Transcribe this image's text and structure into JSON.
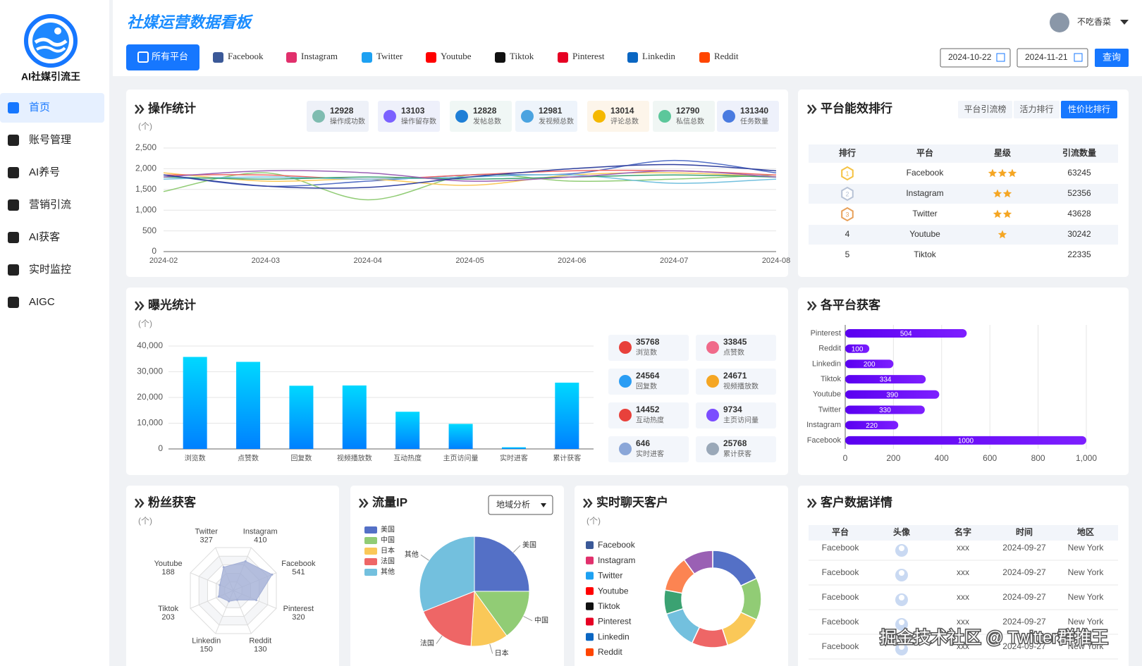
{
  "sidebar": {
    "brand": "AI社媒引流王",
    "menu": [
      "首页",
      "账号管理",
      "AI养号",
      "营销引流",
      "AI获客",
      "实时监控",
      "AIGC"
    ],
    "active": 0
  },
  "header": {
    "title": "社媒运营数据看板",
    "user": "不吃香菜",
    "platform_tabs": [
      "所有平台",
      "Facebook",
      "Instagram",
      "Twitter",
      "Youtube",
      "Tiktok",
      "Pinterest",
      "Linkedin",
      "Reddit"
    ],
    "date_start": "2024-10-22",
    "date_end": "2024-11-21",
    "query": "查询"
  },
  "ranking": {
    "title": "平台能效排行",
    "tabs": [
      "平台引流榜",
      "活力排行",
      "性价比排行"
    ],
    "active_tab": 2,
    "columns": [
      "排行",
      "平台",
      "星级",
      "引流数量"
    ],
    "rows": [
      {
        "rank": 1,
        "platform": "Facebook",
        "stars": 3,
        "count": 63245
      },
      {
        "rank": 2,
        "platform": "Instagram",
        "stars": 2,
        "count": 52356
      },
      {
        "rank": 3,
        "platform": "Twitter",
        "stars": 2,
        "count": 43628
      },
      {
        "rank": 4,
        "platform": "Youtube",
        "stars": 1,
        "count": 30242
      },
      {
        "rank": 5,
        "platform": "Tiktok",
        "stars": 0,
        "count": 22335
      }
    ]
  },
  "customers": {
    "title": "客户数据详情",
    "columns": [
      "平台",
      "头像",
      "名字",
      "时间",
      "地区"
    ],
    "rows": [
      [
        "Facebook",
        "xxx",
        "2024-09-27",
        "New York"
      ],
      [
        "Facebook",
        "xxx",
        "2024-09-27",
        "New York"
      ],
      [
        "Facebook",
        "xxx",
        "2024-09-27",
        "New York"
      ],
      [
        "Facebook",
        "xxx",
        "2024-09-27",
        "New York"
      ],
      [
        "Facebook",
        "xxx",
        "2024-09-27",
        "New York"
      ]
    ]
  },
  "watermark": "掘金技术社区 @ Twitter群推王",
  "chart_data": [
    {
      "type": "line",
      "title": "操作统计",
      "unit": "(个)",
      "stats": [
        {
          "value": 12928,
          "label": "操作成功数"
        },
        {
          "value": 13103,
          "label": "操作留存数"
        },
        {
          "value": 12828,
          "label": "发帖总数"
        },
        {
          "value": 12981,
          "label": "发视频总数"
        },
        {
          "value": 13014,
          "label": "评论总数"
        },
        {
          "value": 12790,
          "label": "私信总数"
        },
        {
          "value": 131340,
          "label": "任务数量"
        }
      ],
      "categories": [
        "2024-02",
        "2024-03",
        "2024-04",
        "2024-05",
        "2024-06",
        "2024-07",
        "2024-08"
      ],
      "series": [
        {
          "color": "#5470c6",
          "values": [
            1850,
            1580,
            1700,
            1850,
            1880,
            2200,
            1900
          ]
        },
        {
          "color": "#91cc75",
          "values": [
            1450,
            1900,
            1250,
            1850,
            1700,
            1750,
            1850
          ]
        },
        {
          "color": "#fac858",
          "values": [
            1900,
            1700,
            1750,
            1600,
            1850,
            1900,
            1800
          ]
        },
        {
          "color": "#ee6666",
          "values": [
            1850,
            1850,
            1750,
            1850,
            1950,
            1950,
            1850
          ]
        },
        {
          "color": "#73c0de",
          "values": [
            1750,
            1800,
            1750,
            1800,
            1850,
            1650,
            1750
          ]
        },
        {
          "color": "#3ba272",
          "values": [
            1800,
            1750,
            1800,
            1750,
            1800,
            1850,
            1800
          ]
        },
        {
          "color": "#9a60b4",
          "values": [
            1800,
            1950,
            1900,
            1700,
            1800,
            1950,
            1800
          ]
        },
        {
          "color": "#2f3f9e",
          "values": [
            1850,
            1580,
            1550,
            1800,
            2000,
            2100,
            1950
          ]
        }
      ],
      "ylim": [
        0,
        2500
      ],
      "yticks": [
        0,
        500,
        {
          "value": 1000,
          "label": "1,000"
        },
        {
          "value": 1500,
          "label": "1,500"
        },
        {
          "value": 2000,
          "label": "2,000"
        },
        {
          "value": 2500,
          "label": "2,500"
        }
      ],
      "grid": true
    },
    {
      "type": "bar",
      "title": "曝光统计",
      "unit": "(个)",
      "stats": [
        {
          "value": 35768,
          "label": "浏览数"
        },
        {
          "value": 33845,
          "label": "点赞数"
        },
        {
          "value": 24564,
          "label": "回复数"
        },
        {
          "value": 24671,
          "label": "视频播放数"
        },
        {
          "value": 14452,
          "label": "互动热度"
        },
        {
          "value": 9734,
          "label": "主页访问量"
        },
        {
          "value": 646,
          "label": "实时进客"
        },
        {
          "value": 25768,
          "label": "累计获客"
        }
      ],
      "categories": [
        "浏览数",
        "点赞数",
        "回复数",
        "视频播放数",
        "互动热度",
        "主页访问量",
        "实时进客",
        "累计获客"
      ],
      "values": [
        35768,
        33845,
        24564,
        24671,
        14452,
        9734,
        646,
        25768
      ],
      "colors": [
        "#00d8ff",
        "#0080ff"
      ],
      "ylim": [
        0,
        40000
      ],
      "yticks": [
        0,
        {
          "value": 10000,
          "label": "10,000"
        },
        {
          "value": 20000,
          "label": "20,000"
        },
        {
          "value": 30000,
          "label": "30,000"
        },
        {
          "value": 40000,
          "label": "40,000"
        }
      ],
      "grid": true
    },
    {
      "type": "bar",
      "orientation": "horizontal",
      "title": "各平台获客",
      "categories": [
        "Pinterest",
        "Reddit",
        "Linkedin",
        "Tiktok",
        "Youtube",
        "Twitter",
        "Instagram",
        "Facebook"
      ],
      "values": [
        504,
        100,
        200,
        334,
        390,
        330,
        220,
        1000
      ],
      "colors": [
        "#5a00f0",
        "#7d1fff"
      ],
      "xlim": [
        0,
        1000
      ],
      "xticks": [
        0,
        200,
        400,
        600,
        800,
        {
          "value": 1000,
          "label": "1,000"
        }
      ],
      "grid": true
    },
    {
      "type": "radar",
      "title": "粉丝获客",
      "unit": "(个)",
      "categories": [
        "Instagram",
        "Facebook",
        "Pinterest",
        "Reddit",
        "Linkedin",
        "Tiktok",
        "Youtube",
        "Twitter"
      ],
      "values": [
        410,
        541,
        320,
        130,
        150,
        203,
        188,
        327
      ],
      "color": "#a3afd6",
      "rlim": [
        0,
        600
      ]
    },
    {
      "type": "pie",
      "title": "流量IP",
      "select": "地域分析",
      "categories": [
        "美国",
        "中国",
        "日本",
        "法国",
        "其他"
      ],
      "values": [
        25,
        15,
        11,
        18,
        31
      ],
      "colors": [
        "#5470c6",
        "#91cc75",
        "#fac858",
        "#ee6666",
        "#73c0de"
      ]
    },
    {
      "type": "donut",
      "title": "实时聊天客户",
      "unit": "(个)",
      "categories": [
        "Facebook",
        "Instagram",
        "Twitter",
        "Youtube",
        "Tiktok",
        "Pinterest",
        "Linkedin",
        "Reddit"
      ],
      "values": [
        18,
        14,
        13,
        12,
        13,
        8,
        12,
        10
      ],
      "colors": [
        "#5470c6",
        "#91cc75",
        "#fac858",
        "#ee6666",
        "#73c0de",
        "#3ba272",
        "#fc8452",
        "#9a60b4"
      ]
    }
  ]
}
